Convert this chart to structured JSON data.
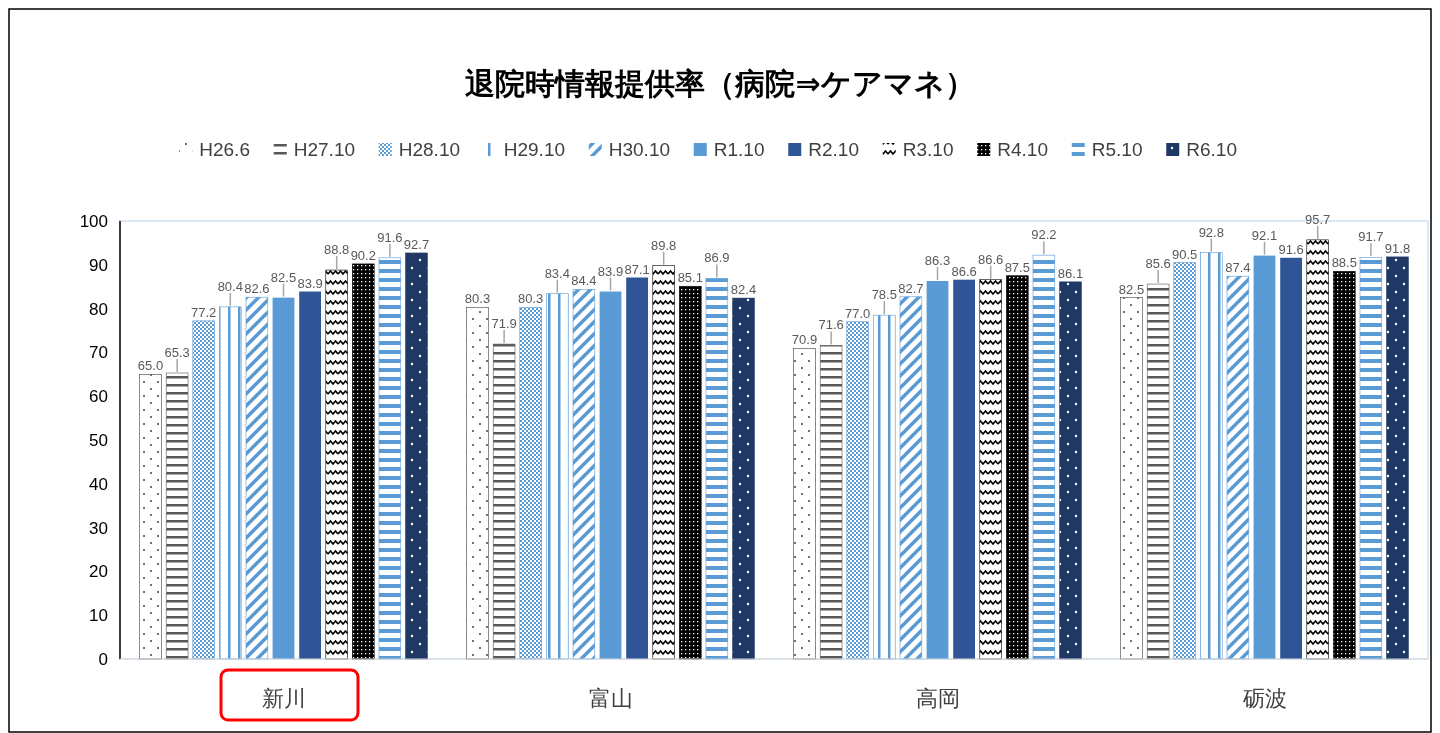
{
  "chart_data": {
    "type": "bar",
    "title": "退院時情報提供率（病院⇒ケアマネ）",
    "categories": [
      "新川",
      "富山",
      "高岡",
      "砺波"
    ],
    "series": [
      {
        "name": "H26.6",
        "color": "#404040",
        "values": [
          65.0,
          80.3,
          70.9,
          82.5
        ],
        "value_labels": [
          "65.0",
          "80.3",
          "70.9",
          "82.5"
        ]
      },
      {
        "name": "H27.10",
        "color": "#595959",
        "values": [
          65.3,
          71.9,
          71.6,
          85.6
        ],
        "value_labels": [
          "65.3",
          "71.9",
          "71.6",
          "85.6"
        ]
      },
      {
        "name": "H28.10",
        "color": "#5b9bd5",
        "values": [
          77.2,
          80.3,
          77.0,
          90.5
        ],
        "value_labels": [
          "77.2",
          "80.3",
          "77.0",
          "90.5"
        ]
      },
      {
        "name": "H29.10",
        "color": "#5b9bd5",
        "values": [
          80.4,
          83.4,
          78.5,
          92.8
        ],
        "value_labels": [
          "80.4",
          "83.4",
          "78.5",
          "92.8"
        ]
      },
      {
        "name": "H30.10",
        "color": "#5b9bd5",
        "values": [
          82.6,
          84.4,
          82.7,
          87.4
        ],
        "value_labels": [
          "82.6",
          "84.4",
          "82.7",
          "87.4"
        ]
      },
      {
        "name": "R1.10",
        "color": "#5b9bd5",
        "values": [
          82.5,
          83.9,
          86.3,
          92.1
        ],
        "value_labels": [
          "82.5",
          "83.9",
          "86.3",
          "92.1"
        ]
      },
      {
        "name": "R2.10",
        "color": "#2f5597",
        "values": [
          83.9,
          87.1,
          86.6,
          91.6
        ],
        "value_labels": [
          "83.9",
          "87.1",
          "86.6",
          "91.6"
        ]
      },
      {
        "name": "R3.10",
        "color": "#000000",
        "values": [
          88.8,
          89.8,
          86.6,
          95.7
        ],
        "value_labels": [
          "88.8",
          "89.8",
          "86.6",
          "95.7"
        ]
      },
      {
        "name": "R4.10",
        "color": "#000000",
        "values": [
          90.2,
          85.1,
          87.5,
          88.5
        ],
        "value_labels": [
          "90.2",
          "85.1",
          "87.5",
          "88.5"
        ]
      },
      {
        "name": "R5.10",
        "color": "#5b9bd5",
        "values": [
          91.6,
          86.9,
          92.2,
          91.7
        ],
        "value_labels": [
          "91.6",
          "86.9",
          "92.2",
          "91.7"
        ]
      },
      {
        "name": "R6.10",
        "color": "#203864",
        "values": [
          92.7,
          82.4,
          86.1,
          91.8
        ],
        "value_labels": [
          "92.7",
          "82.4",
          "86.1",
          "91.8"
        ]
      }
    ],
    "ylim": [
      0,
      100
    ],
    "yticks": [
      0,
      10,
      20,
      30,
      40,
      50,
      60,
      70,
      80,
      90,
      100
    ],
    "grid": false,
    "legend": "top"
  }
}
